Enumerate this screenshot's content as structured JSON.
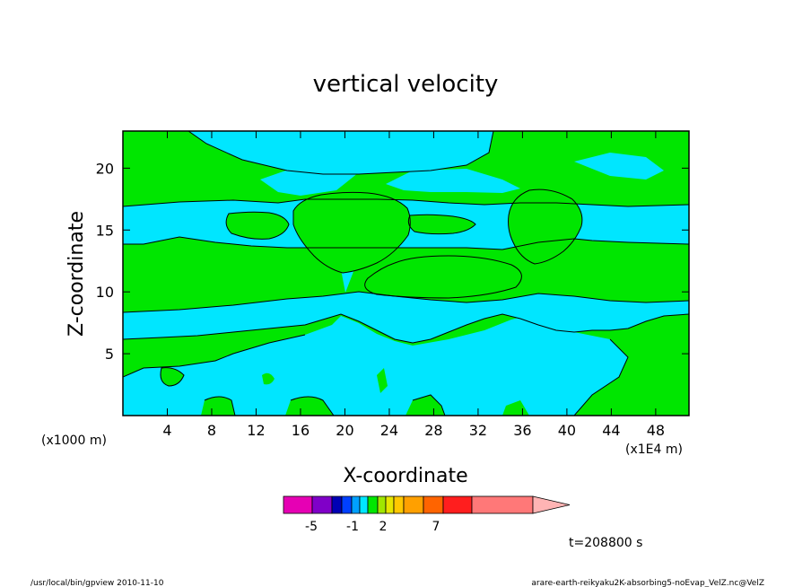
{
  "chart_data": {
    "type": "heatmap",
    "title": "vertical velocity",
    "xlabel": "X-coordinate",
    "ylabel": "Z-coordinate",
    "xlim": [
      0,
      51
    ],
    "ylim": [
      0,
      23
    ],
    "x_ticks": [
      "4",
      "8",
      "12",
      "16",
      "20",
      "24",
      "28",
      "32",
      "36",
      "40",
      "44",
      "48"
    ],
    "y_ticks": [
      "5",
      "10",
      "15",
      "20"
    ],
    "x_unit_left": "(x1000 m)",
    "x_unit_right": "(x1E4 m)",
    "time_label": "t=208800 s",
    "colorbar": {
      "bins": [
        {
          "color": "#e600b4"
        },
        {
          "color": "#8000c8"
        },
        {
          "color": "#0000b4"
        },
        {
          "color": "#0040ff"
        },
        {
          "color": "#00a0ff"
        },
        {
          "color": "#00e6ff"
        },
        {
          "color": "#00e600"
        },
        {
          "color": "#a0e600"
        },
        {
          "color": "#e6e600"
        },
        {
          "color": "#ffc800"
        },
        {
          "color": "#ffa000"
        },
        {
          "color": "#ff6400"
        },
        {
          "color": "#ff1e1e"
        },
        {
          "color": "#ff7878"
        },
        {
          "color": "#ffb4b4"
        }
      ],
      "tick_labels": [
        "-5",
        "-1",
        "2",
        "7"
      ]
    },
    "regions": {
      "positive_color": "#00e600",
      "negative_color": "#00e6ff"
    }
  },
  "footer": {
    "left": "/usr/local/bin/gpview  2010-11-10",
    "right": "arare-earth-reikyaku2K-absorbing5-noEvap_VelZ.nc@VelZ"
  }
}
